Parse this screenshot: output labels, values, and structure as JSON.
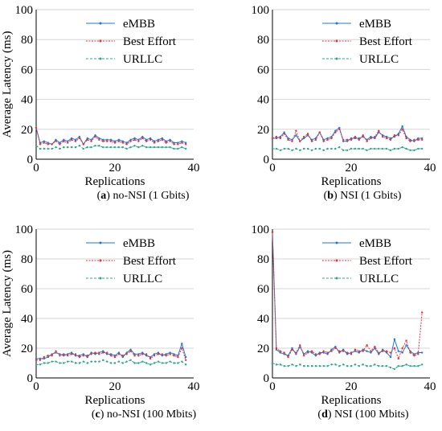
{
  "chart_data": [
    {
      "type": "line",
      "panel_letter": "a",
      "caption_text": "no-NSI (1 Gbits)",
      "xlabel": "Replications",
      "ylabel": "Average Latency (ms)",
      "xlim": [
        0,
        40
      ],
      "ylim": [
        0,
        100
      ],
      "xticks": [
        0,
        20,
        40
      ],
      "yticks": [
        0,
        20,
        40,
        60,
        80,
        100
      ],
      "grid": true,
      "legend_position": "top-right",
      "series": [
        {
          "name": "eMBB",
          "color": "#1f77d4",
          "values": [
            21,
            11,
            12,
            11,
            10,
            13,
            11,
            13,
            12,
            14,
            13,
            15,
            10,
            14,
            13,
            16,
            14,
            13,
            13,
            13,
            12,
            13,
            12,
            11,
            13,
            14,
            13,
            15,
            13,
            14,
            12,
            13,
            14,
            12,
            13,
            11,
            11,
            12,
            11
          ]
        },
        {
          "name": "Best Effort",
          "color": "#e8303a",
          "values": [
            21,
            10,
            11,
            10,
            10,
            12,
            10,
            12,
            11,
            13,
            12,
            14,
            10,
            13,
            12,
            15,
            13,
            12,
            12,
            12,
            11,
            12,
            11,
            10,
            12,
            13,
            12,
            14,
            12,
            13,
            11,
            12,
            13,
            11,
            12,
            10,
            10,
            11,
            10
          ]
        },
        {
          "name": "URLLC",
          "color": "#2ca58d",
          "values": [
            9,
            7,
            7,
            7,
            7,
            8,
            7,
            8,
            8,
            8,
            8,
            9,
            7,
            8,
            8,
            9,
            9,
            8,
            8,
            8,
            8,
            8,
            8,
            7,
            8,
            9,
            8,
            9,
            8,
            8,
            8,
            8,
            8,
            8,
            8,
            7,
            7,
            8,
            7
          ]
        }
      ]
    },
    {
      "type": "line",
      "panel_letter": "b",
      "caption_text": "NSI (1 Gbits)",
      "xlabel": "Replications",
      "ylabel": "",
      "xlim": [
        0,
        40
      ],
      "ylim": [
        0,
        100
      ],
      "xticks": [
        0,
        20,
        40
      ],
      "yticks": [
        0,
        20,
        40,
        60,
        80,
        100
      ],
      "grid": true,
      "legend_position": "top-right",
      "series": [
        {
          "name": "eMBB",
          "color": "#1f77d4",
          "values": [
            14,
            14,
            15,
            18,
            14,
            13,
            16,
            12,
            14,
            16,
            13,
            14,
            18,
            13,
            14,
            15,
            19,
            21,
            12,
            12,
            14,
            14,
            14,
            15,
            13,
            15,
            14,
            18,
            16,
            15,
            14,
            15,
            17,
            22,
            15,
            13,
            12,
            14,
            14
          ]
        },
        {
          "name": "Best Effort",
          "color": "#e8303a",
          "values": [
            14,
            15,
            14,
            17,
            13,
            12,
            19,
            12,
            15,
            17,
            12,
            13,
            18,
            12,
            13,
            14,
            18,
            20,
            13,
            13,
            13,
            15,
            13,
            16,
            12,
            14,
            15,
            19,
            15,
            14,
            13,
            16,
            16,
            20,
            14,
            12,
            13,
            13,
            13
          ]
        },
        {
          "name": "URLLC",
          "color": "#2ca58d",
          "values": [
            7,
            7,
            6,
            7,
            7,
            6,
            7,
            6,
            7,
            7,
            6,
            7,
            7,
            6,
            7,
            7,
            7,
            8,
            6,
            6,
            7,
            7,
            7,
            7,
            6,
            7,
            7,
            7,
            7,
            7,
            6,
            7,
            7,
            8,
            7,
            6,
            6,
            7,
            7
          ]
        }
      ]
    },
    {
      "type": "line",
      "panel_letter": "c",
      "caption_text": "no-NSI (100 Mbits)",
      "xlabel": "Replications",
      "ylabel": "Average Latency (ms)",
      "xlim": [
        0,
        40
      ],
      "ylim": [
        0,
        100
      ],
      "xticks": [
        0,
        20,
        40
      ],
      "yticks": [
        0,
        20,
        40,
        60,
        80,
        100
      ],
      "grid": true,
      "legend_position": "top-right",
      "series": [
        {
          "name": "eMBB",
          "color": "#1f77d4",
          "values": [
            13,
            13,
            13,
            14,
            16,
            17,
            16,
            15,
            16,
            17,
            15,
            15,
            16,
            14,
            17,
            16,
            17,
            18,
            16,
            16,
            15,
            17,
            14,
            17,
            19,
            16,
            16,
            17,
            15,
            14,
            16,
            17,
            15,
            16,
            17,
            16,
            15,
            23,
            14
          ]
        },
        {
          "name": "Best Effort",
          "color": "#e8303a",
          "values": [
            12,
            12,
            14,
            15,
            15,
            18,
            15,
            16,
            15,
            16,
            16,
            14,
            15,
            15,
            16,
            17,
            16,
            17,
            17,
            15,
            14,
            16,
            15,
            16,
            18,
            15,
            15,
            16,
            16,
            13,
            15,
            16,
            16,
            15,
            16,
            15,
            14,
            20,
            12
          ]
        },
        {
          "name": "URLLC",
          "color": "#2ca58d",
          "values": [
            9,
            9,
            10,
            10,
            11,
            11,
            10,
            10,
            11,
            11,
            10,
            10,
            11,
            10,
            11,
            11,
            11,
            12,
            11,
            10,
            10,
            11,
            10,
            11,
            12,
            10,
            10,
            11,
            10,
            9,
            10,
            11,
            10,
            10,
            11,
            10,
            10,
            11,
            9
          ]
        }
      ]
    },
    {
      "type": "line",
      "panel_letter": "d",
      "caption_text": "NSI (100 Mbits)",
      "xlabel": "Replications",
      "ylabel": "",
      "xlim": [
        0,
        40
      ],
      "ylim": [
        0,
        100
      ],
      "xticks": [
        0,
        20,
        40
      ],
      "yticks": [
        0,
        20,
        40,
        60,
        80,
        100
      ],
      "grid": true,
      "legend_position": "top-right",
      "series": [
        {
          "name": "eMBB",
          "color": "#1f77d4",
          "values": [
            98,
            19,
            17,
            16,
            15,
            20,
            16,
            21,
            16,
            18,
            17,
            15,
            17,
            17,
            16,
            19,
            21,
            17,
            19,
            16,
            17,
            18,
            17,
            19,
            18,
            17,
            20,
            16,
            19,
            17,
            14,
            26,
            18,
            17,
            22,
            18,
            16,
            17,
            17
          ]
        },
        {
          "name": "Best Effort",
          "color": "#e8303a",
          "values": [
            98,
            20,
            18,
            17,
            14,
            19,
            17,
            22,
            15,
            17,
            18,
            16,
            16,
            18,
            17,
            18,
            20,
            18,
            18,
            17,
            16,
            19,
            18,
            18,
            22,
            18,
            21,
            17,
            18,
            18,
            17,
            20,
            13,
            20,
            25,
            17,
            15,
            16,
            44
          ]
        },
        {
          "name": "URLLC",
          "color": "#2ca58d",
          "values": [
            10,
            9,
            9,
            8,
            8,
            9,
            8,
            9,
            8,
            8,
            8,
            8,
            8,
            8,
            8,
            9,
            9,
            8,
            9,
            8,
            8,
            9,
            8,
            9,
            8,
            8,
            9,
            8,
            8,
            8,
            7,
            6,
            8,
            8,
            9,
            8,
            8,
            8,
            9
          ]
        }
      ]
    }
  ]
}
